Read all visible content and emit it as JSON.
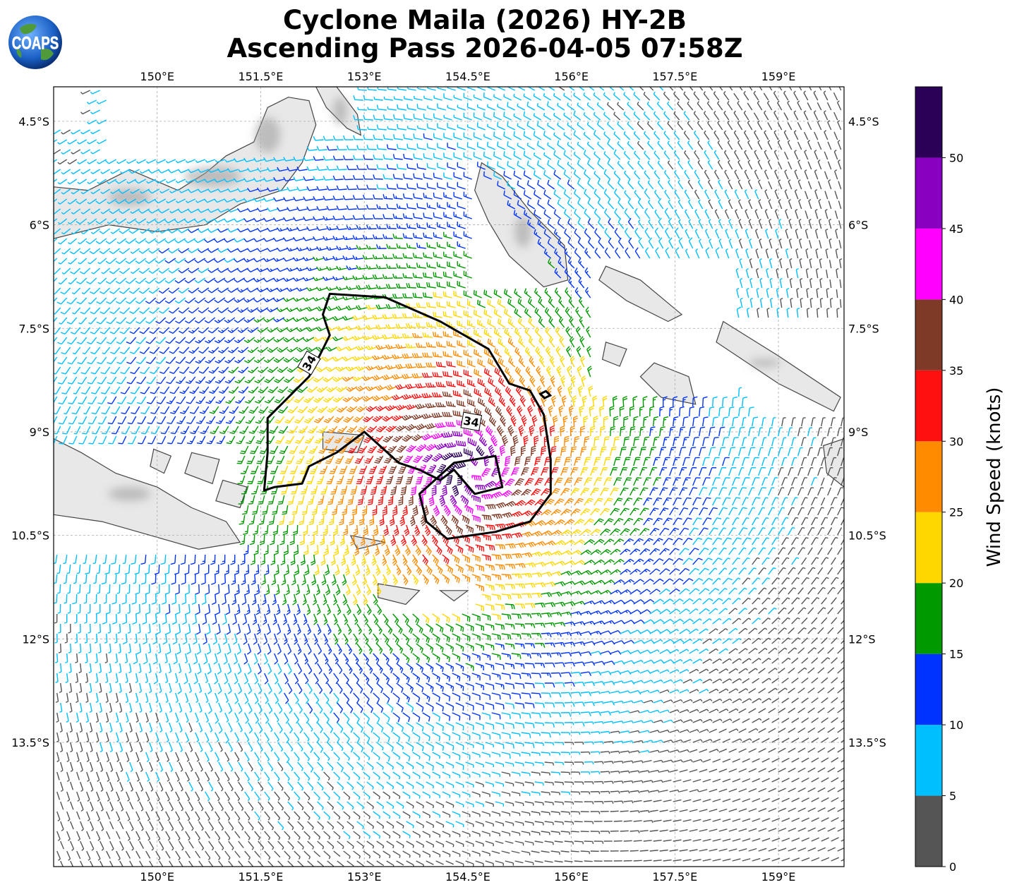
{
  "title": {
    "line1": "Cyclone Maila (2026) HY-2B",
    "line2": "Ascending Pass 2026-04-05 07:58Z"
  },
  "logo": {
    "text": "COAPS",
    "icon": "globe-icon"
  },
  "map": {
    "lon_range": [
      148.5,
      159.95
    ],
    "lat_range": [
      -15.3,
      -4.0
    ],
    "lon_ticks": [
      "150°E",
      "151.5°E",
      "153°E",
      "154.5°E",
      "156°E",
      "157.5°E",
      "159°E"
    ],
    "lat_ticks": [
      "4.5°S",
      "6°S",
      "7.5°S",
      "9°S",
      "10.5°S",
      "12°S",
      "13.5°S"
    ],
    "storm_center": {
      "lon": 154.55,
      "lat": -9.6
    },
    "contour_label": "34",
    "contour_label_2": "34"
  },
  "colorbar": {
    "label": "Wind Speed (knots)",
    "ticks": [
      "0",
      "5",
      "10",
      "15",
      "20",
      "25",
      "30",
      "35",
      "40",
      "45",
      "50"
    ],
    "bins": [
      {
        "min": 0,
        "max": 5,
        "color": "#555555"
      },
      {
        "min": 5,
        "max": 10,
        "color": "#00bfff"
      },
      {
        "min": 10,
        "max": 15,
        "color": "#0033ff"
      },
      {
        "min": 15,
        "max": 20,
        "color": "#009900"
      },
      {
        "min": 20,
        "max": 25,
        "color": "#ffd700"
      },
      {
        "min": 25,
        "max": 30,
        "color": "#ff8c00"
      },
      {
        "min": 30,
        "max": 35,
        "color": "#ff1010"
      },
      {
        "min": 35,
        "max": 40,
        "color": "#7f3a27"
      },
      {
        "min": 40,
        "max": 45,
        "color": "#ff00ff"
      },
      {
        "min": 45,
        "max": 50,
        "color": "#8a00c0"
      },
      {
        "min": 50,
        "max": 55,
        "color": "#2b0057"
      }
    ]
  }
}
